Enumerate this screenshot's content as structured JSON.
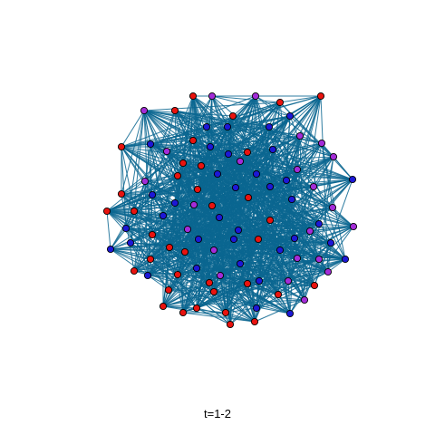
{
  "caption": "t=1-2",
  "colors": {
    "edge": "#0b6690",
    "node_outline": "#000000",
    "red": "#e8130f",
    "blue": "#1d18d6",
    "purple": "#a32cd8",
    "background": "#ffffff"
  },
  "node_counts": {
    "red": 37,
    "blue": 37,
    "purple": 23
  },
  "edge_density": "dense"
}
